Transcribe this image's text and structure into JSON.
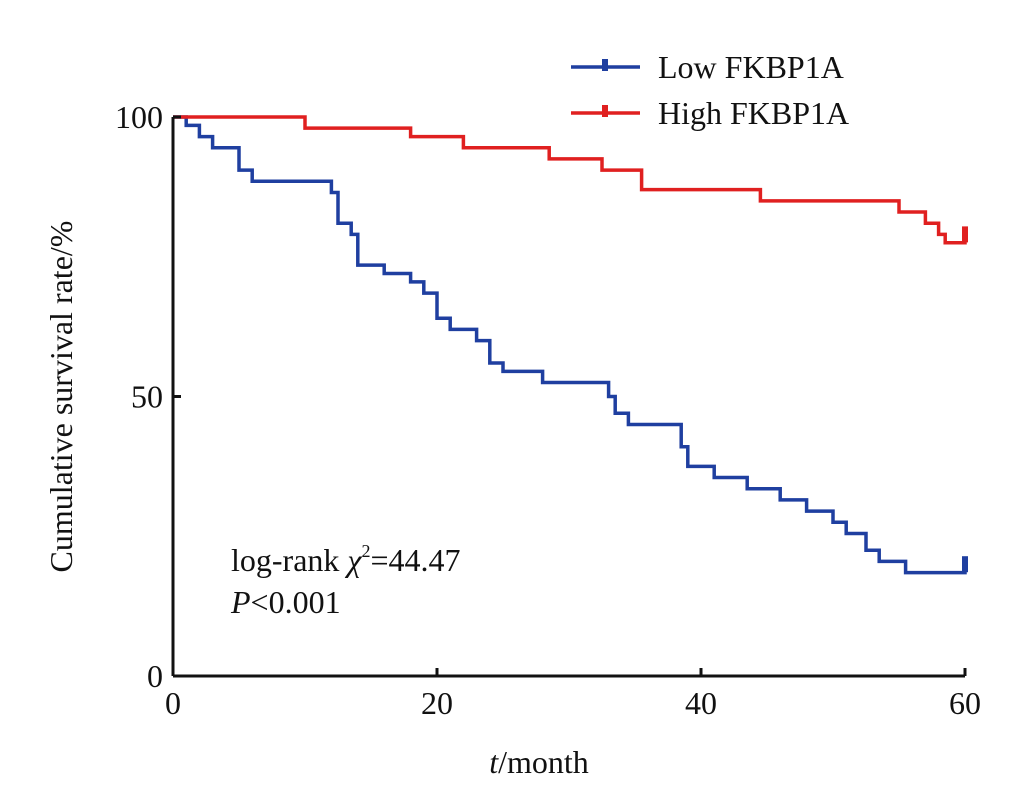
{
  "chart_data": {
    "type": "line",
    "step": true,
    "xlabel_var": "t",
    "xlabel_unit": "/month",
    "ylabel": "Cumulative survival rate/%",
    "xlim": [
      0,
      60
    ],
    "ylim": [
      0,
      100
    ],
    "xticks": [
      "0",
      "20",
      "40",
      "60"
    ],
    "yticks": [
      "0",
      "50",
      "100"
    ],
    "grid": false,
    "legend_position": "top-right",
    "annotation": {
      "prefix": "log-rank ",
      "chi_symbol": "χ",
      "chi_sup": "2",
      "stat": "=44.47",
      "p_symbol": "P",
      "p_value": "<0.001"
    },
    "series": [
      {
        "name": "Low FKBP1A",
        "color": "#1f3fa0",
        "points": [
          [
            0,
            100
          ],
          [
            1,
            98.5
          ],
          [
            2,
            96.5
          ],
          [
            3,
            94.5
          ],
          [
            5,
            90.5
          ],
          [
            6,
            88.5
          ],
          [
            11.5,
            88.5
          ],
          [
            12,
            86.5
          ],
          [
            12.5,
            81
          ],
          [
            13.5,
            79
          ],
          [
            14,
            73.5
          ],
          [
            16,
            72
          ],
          [
            18,
            70.5
          ],
          [
            19,
            68.5
          ],
          [
            20,
            64
          ],
          [
            21,
            62
          ],
          [
            23,
            60
          ],
          [
            24,
            56
          ],
          [
            25,
            54.5
          ],
          [
            28,
            52.5
          ],
          [
            32,
            52.5
          ],
          [
            33,
            50
          ],
          [
            33.5,
            47
          ],
          [
            34.5,
            45
          ],
          [
            38,
            45
          ],
          [
            38.5,
            41
          ],
          [
            39,
            37.5
          ],
          [
            41,
            35.5
          ],
          [
            43.5,
            33.5
          ],
          [
            46,
            31.5
          ],
          [
            48,
            29.5
          ],
          [
            50,
            27.5
          ],
          [
            51,
            25.5
          ],
          [
            52.5,
            22.5
          ],
          [
            53.5,
            20.5
          ],
          [
            55.5,
            18.5
          ],
          [
            59.5,
            18.5
          ],
          [
            60,
            20
          ]
        ]
      },
      {
        "name": "High FKBP1A",
        "color": "#e02020",
        "points": [
          [
            0,
            100
          ],
          [
            10,
            100
          ],
          [
            10,
            98
          ],
          [
            18,
            98
          ],
          [
            18,
            96.5
          ],
          [
            22,
            96.5
          ],
          [
            22,
            94.5
          ],
          [
            28.5,
            94.5
          ],
          [
            28.5,
            92.5
          ],
          [
            32.5,
            92.5
          ],
          [
            32.5,
            90.5
          ],
          [
            35.5,
            90.5
          ],
          [
            35.5,
            87
          ],
          [
            44.5,
            87
          ],
          [
            44.5,
            85
          ],
          [
            55,
            85
          ],
          [
            55,
            83
          ],
          [
            56.5,
            83
          ],
          [
            57,
            81
          ],
          [
            58,
            79
          ],
          [
            58.5,
            77.5
          ],
          [
            59.5,
            77.5
          ],
          [
            60,
            79
          ]
        ]
      }
    ]
  }
}
